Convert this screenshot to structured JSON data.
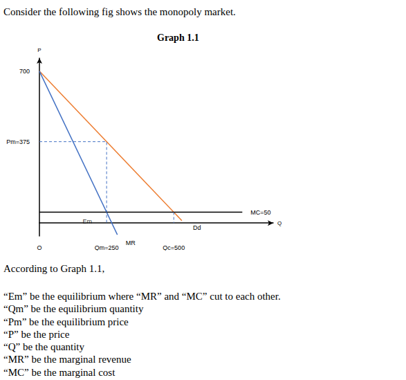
{
  "intro": "Consider the following fig shows the monopoly market.",
  "chart_data": {
    "type": "line",
    "title": "Graph 1.1",
    "x_label": "Q",
    "y_label": "P",
    "xlim": [
      0,
      870
    ],
    "ylim": [
      -60,
      760
    ],
    "xticks": [
      {
        "value": 0,
        "label": "O"
      },
      {
        "value": 250,
        "label": "Qm=250"
      },
      {
        "value": 500,
        "label": "Qc=500"
      }
    ],
    "yticks": [
      700,
      {
        "value": 375,
        "label": "Pm=375"
      }
    ],
    "grid": false,
    "series": [
      {
        "name": "Dd",
        "color": "#ed7d31",
        "x": [
          0,
          530
        ],
        "values": [
          700,
          11
        ]
      },
      {
        "name": "MR",
        "color": "#4472c4",
        "x": [
          0,
          290
        ],
        "values": [
          700,
          -54
        ]
      },
      {
        "name": "MC=50",
        "color": "#000000",
        "x": [
          0,
          755
        ],
        "values": [
          50,
          50
        ]
      },
      {
        "color": "#4472c4",
        "line_style": "dashed",
        "x": [
          0,
          250,
          250
        ],
        "values": [
          375,
          375,
          0
        ]
      },
      {
        "color": "#4472c4",
        "line_style": "dashed",
        "x": [
          500,
          500
        ],
        "values": [
          50,
          0
        ]
      }
    ],
    "annotations": [
      {
        "text": "Em",
        "x": 250,
        "y": 50
      }
    ]
  },
  "caption": "According to Graph 1.1,",
  "definitions": [
    "“Em” be the equilibrium where “MR” and “MC” cut to each other.",
    "“Qm” be the equilibrium quantity",
    "“Pm” be the equilibrium price",
    "“P” be the price",
    "“Q” be the quantity",
    "“MR” be the marginal revenue",
    "“MC” be the marginal cost"
  ]
}
